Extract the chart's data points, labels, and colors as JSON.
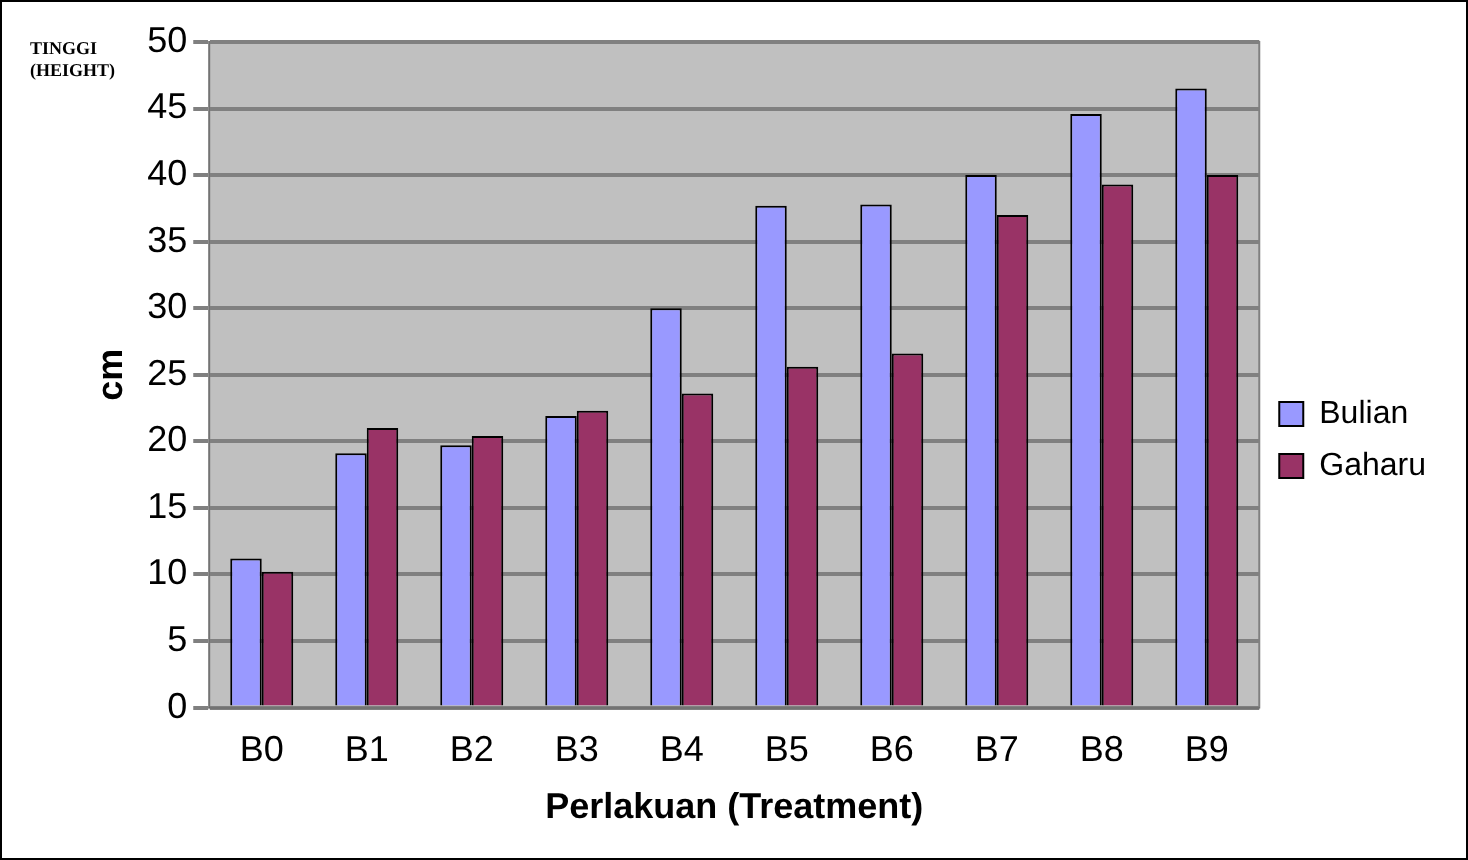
{
  "chart_data": {
    "type": "bar",
    "xlabel": "Perlakuan (Treatment)",
    "ylabel": "cm",
    "annotations": [
      "TINGGI (HEIGHT)"
    ],
    "categories": [
      "B0",
      "B1",
      "B2",
      "B3",
      "B4",
      "B5",
      "B6",
      "B7",
      "B8",
      "B9"
    ],
    "series": [
      {
        "name": "Bulian",
        "color": "#9999ff",
        "values": [
          11.2,
          19.1,
          19.7,
          21.9,
          30.0,
          37.7,
          37.8,
          40.0,
          44.6,
          46.5
        ]
      },
      {
        "name": "Gaharu",
        "color": "#993366",
        "values": [
          10.2,
          21.0,
          20.4,
          22.3,
          23.6,
          25.6,
          26.6,
          37.0,
          39.3,
          40.0
        ]
      }
    ],
    "ylim": [
      0,
      50
    ],
    "yticks": [
      0,
      5,
      10,
      15,
      20,
      25,
      30,
      35,
      40,
      45,
      50
    ],
    "grid": "y",
    "legend": "right"
  }
}
